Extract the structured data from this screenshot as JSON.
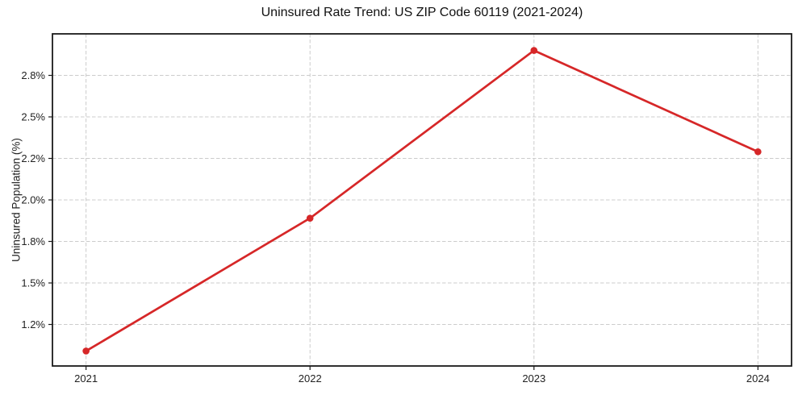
{
  "chart_data": {
    "type": "line",
    "title": "Uninsured Rate Trend: US ZIP Code 60119 (2021-2024)",
    "xlabel": "",
    "ylabel": "Uninsured Population (%)",
    "x": [
      2021,
      2022,
      2023,
      2024
    ],
    "series": [
      {
        "name": "Uninsured Rate",
        "values": [
          1.09,
          1.89,
          2.9,
          2.29
        ]
      }
    ],
    "xtick_labels": [
      "2021",
      "2022",
      "2023",
      "2024"
    ],
    "ytick_values": [
      1.25,
      1.5,
      1.75,
      2.0,
      2.25,
      2.5,
      2.75
    ],
    "ytick_labels": [
      "1.2%",
      "1.5%",
      "1.8%",
      "2.0%",
      "2.2%",
      "2.5%",
      "2.8%"
    ],
    "xlim": [
      2020.85,
      2024.15
    ],
    "ylim": [
      1.0,
      3.0
    ],
    "grid": true,
    "grid_style": "dashed",
    "legend": "none",
    "marker": "o",
    "colors": {
      "line": "#d62728",
      "grid": "#cccccc",
      "spine": "#1a1a1a",
      "tick_text": "#222222",
      "background": "#ffffff"
    }
  }
}
